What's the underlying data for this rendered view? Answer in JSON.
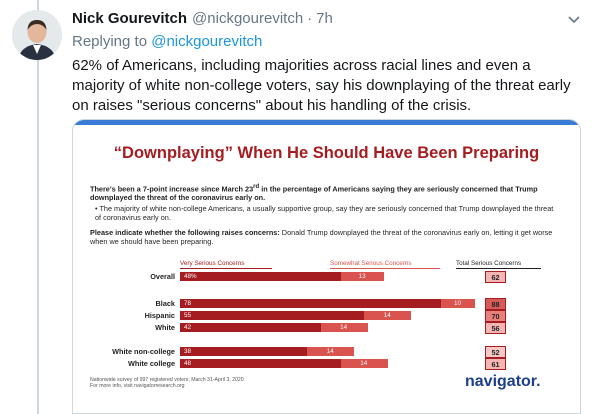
{
  "tweet": {
    "author_name": "Nick Gourevitch",
    "author_handle": "@nickgourevitch",
    "separator": "·",
    "timestamp": "7h",
    "replying_prefix": "Replying to",
    "replying_to": "@nickgourevitch",
    "text": "62% of Americans, including majorities across racial lines and even a majority of white non-college voters, say his downplaying of the threat early on raises \"serious concerns\" about his handling of the crisis."
  },
  "icons": {
    "avatar": "avatar-photo",
    "menu": "chevron-down-icon"
  },
  "colors": {
    "dark_red": "#a51d20",
    "light_red": "#d9534f",
    "brand_blue": "#1c3f8c",
    "link_blue": "#1b95e0"
  },
  "card": {
    "title": "“Downplaying” When He Should Have Been Preparing",
    "intro_1": "There's been a 7-point increase since March 23",
    "intro_sup": "rd",
    "intro_2": " in the percentage of Americans saying they are seriously concerned that Trump downplayed the threat of the coronavirus early on.",
    "bullet": "•  The majority of white non-college Americans, a usually supportive group, say they are seriously concerned that Trump downplayed the threat of coronavirus early on.",
    "question_label": "Please indicate whether the following raises concerns:",
    "question_text": " Donald Trump downplayed the threat of the coronavirus early on, letting it get worse when we should have been preparing.",
    "footnote_1": "Nationwide survey of 997 registered voters; March 31-April 3, 2020",
    "footnote_2": "For more info, visit navigatorresearch.org",
    "brand": "navigator."
  },
  "chart_data": {
    "type": "bar",
    "stacked": true,
    "title": "“Downplaying” When He Should Have Been Preparing",
    "series": [
      {
        "name": "Very Serious Concerns",
        "color": "#a51d20"
      },
      {
        "name": "Somewhat Serious Concerns",
        "color": "#d9534f"
      }
    ],
    "total_label": "Total Serious Concerns",
    "rows": [
      {
        "label": "Overall",
        "very": 48,
        "very_text": "48%",
        "some": 13,
        "total": 62
      },
      {
        "label": "Black",
        "very": 78,
        "very_text": "78",
        "some": 10,
        "total": 88
      },
      {
        "label": "Hispanic",
        "very": 55,
        "very_text": "55",
        "some": 14,
        "total": 70
      },
      {
        "label": "White",
        "very": 42,
        "very_text": "42",
        "some": 14,
        "total": 56
      },
      {
        "label": "White non-college",
        "very": 38,
        "very_text": "38",
        "some": 14,
        "total": 52
      },
      {
        "label": "White college",
        "very": 48,
        "very_text": "48",
        "some": 14,
        "total": 61
      }
    ]
  }
}
